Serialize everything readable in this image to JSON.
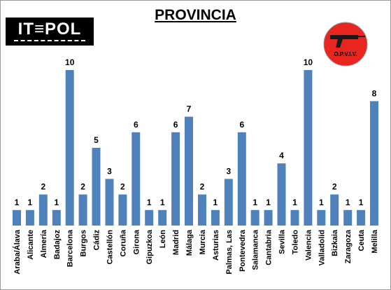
{
  "page": {
    "title": "PROVINCIA"
  },
  "logos": {
    "left_logo_text": "IT≡POL",
    "right_logo_text": "O.P.V.I.V."
  },
  "colors": {
    "bar": "#4f81bd",
    "logo_circle": "#e8251f",
    "logo_bg": "#000000"
  },
  "chart_data": {
    "type": "bar",
    "title": "PROVINCIA",
    "xlabel": "",
    "ylabel": "",
    "ylim": [
      0,
      10
    ],
    "grid": false,
    "categories": [
      "Araba/Álava",
      "Alicante",
      "Almería",
      "Badajoz",
      "Barcelona",
      "Burgos",
      "Cádiz",
      "Castellón",
      "Coruña",
      "Girona",
      "Gipuzkoa",
      "León",
      "Madrid",
      "Málaga",
      "Murcia",
      "Asturias",
      "Palmas, Las",
      "Pontevedra",
      "Salamanca",
      "Cantabria",
      "Sevilla",
      "Toledo",
      "Valencia",
      "Valladolid",
      "Bizkaia",
      "Zaragoza",
      "Ceuta",
      "Melilla"
    ],
    "values": [
      1,
      1,
      2,
      1,
      10,
      2,
      5,
      3,
      2,
      6,
      1,
      1,
      6,
      7,
      2,
      1,
      3,
      6,
      1,
      1,
      4,
      1,
      10,
      1,
      2,
      1,
      1,
      8
    ]
  }
}
